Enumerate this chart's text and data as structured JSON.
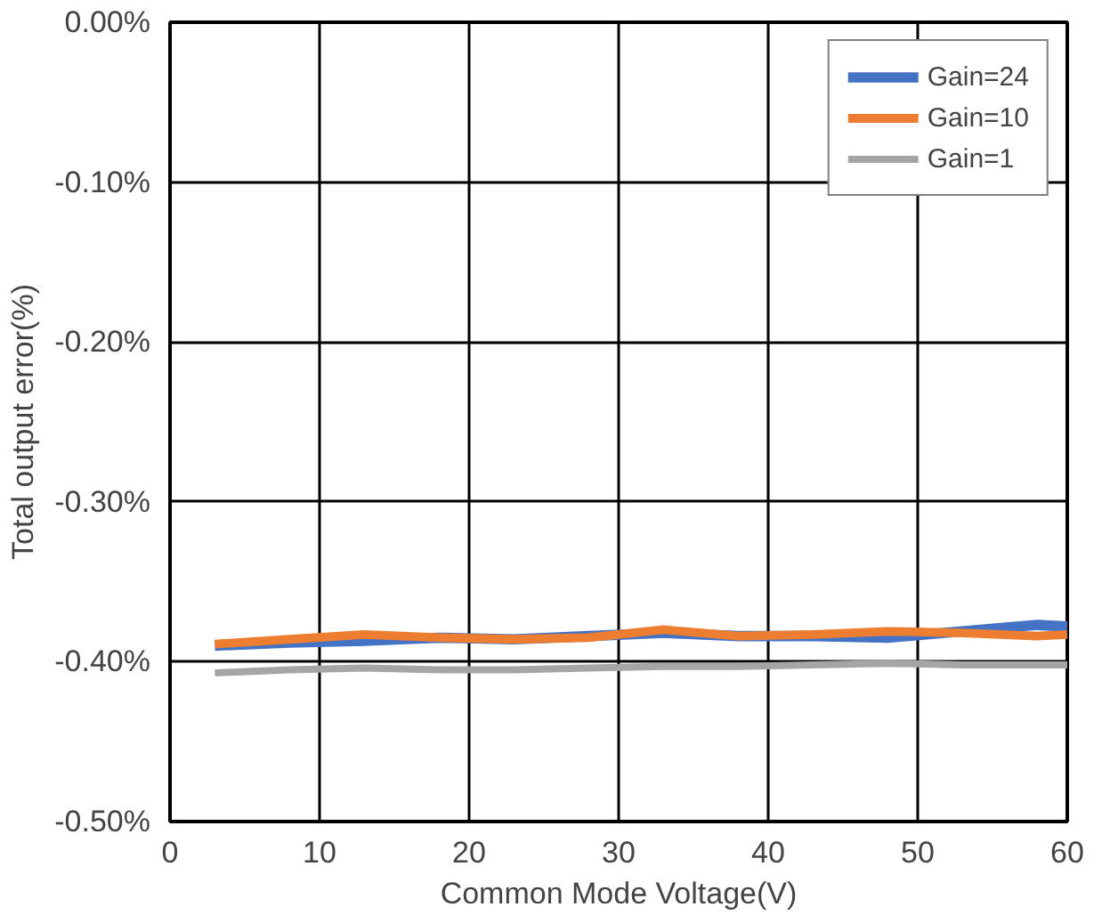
{
  "chart_data": {
    "type": "line",
    "xlabel": "Common Mode Voltage(V)",
    "ylabel": "Total output error(%)",
    "x": [
      3,
      8,
      13,
      18,
      23,
      28,
      33,
      38,
      43,
      48,
      53,
      58,
      60
    ],
    "series": [
      {
        "name": "Gain=24",
        "color": "#4472c4",
        "values": [
          -0.39,
          -0.388,
          -0.387,
          -0.385,
          -0.386,
          -0.384,
          -0.382,
          -0.384,
          -0.384,
          -0.385,
          -0.381,
          -0.377,
          -0.378
        ]
      },
      {
        "name": "Gain=10",
        "color": "#ed7d31",
        "values": [
          -0.389,
          -0.386,
          -0.383,
          -0.385,
          -0.386,
          -0.385,
          -0.38,
          -0.384,
          -0.383,
          -0.381,
          -0.382,
          -0.384,
          -0.383
        ]
      },
      {
        "name": "Gain=1",
        "color": "#a5a5a5",
        "values": [
          -0.407,
          -0.405,
          -0.404,
          -0.405,
          -0.405,
          -0.404,
          -0.403,
          -0.403,
          -0.402,
          -0.401,
          -0.402,
          -0.402,
          -0.402
        ]
      }
    ],
    "xlim": [
      0,
      60
    ],
    "xticks": [
      0,
      10,
      20,
      30,
      40,
      50,
      60
    ],
    "ylim": [
      -0.5,
      0.0
    ],
    "yticks": [
      {
        "value": -0.5,
        "label": "-0.50%"
      },
      {
        "value": -0.4,
        "label": "-0.40%"
      },
      {
        "value": -0.3,
        "label": "-0.30%"
      },
      {
        "value": -0.2,
        "label": "-0.20%"
      },
      {
        "value": -0.1,
        "label": "-0.10%"
      },
      {
        "value": 0.0,
        "label": "0.00%"
      }
    ],
    "grid": true,
    "legend": "top right",
    "marker": "none",
    "line_style": "solid"
  }
}
